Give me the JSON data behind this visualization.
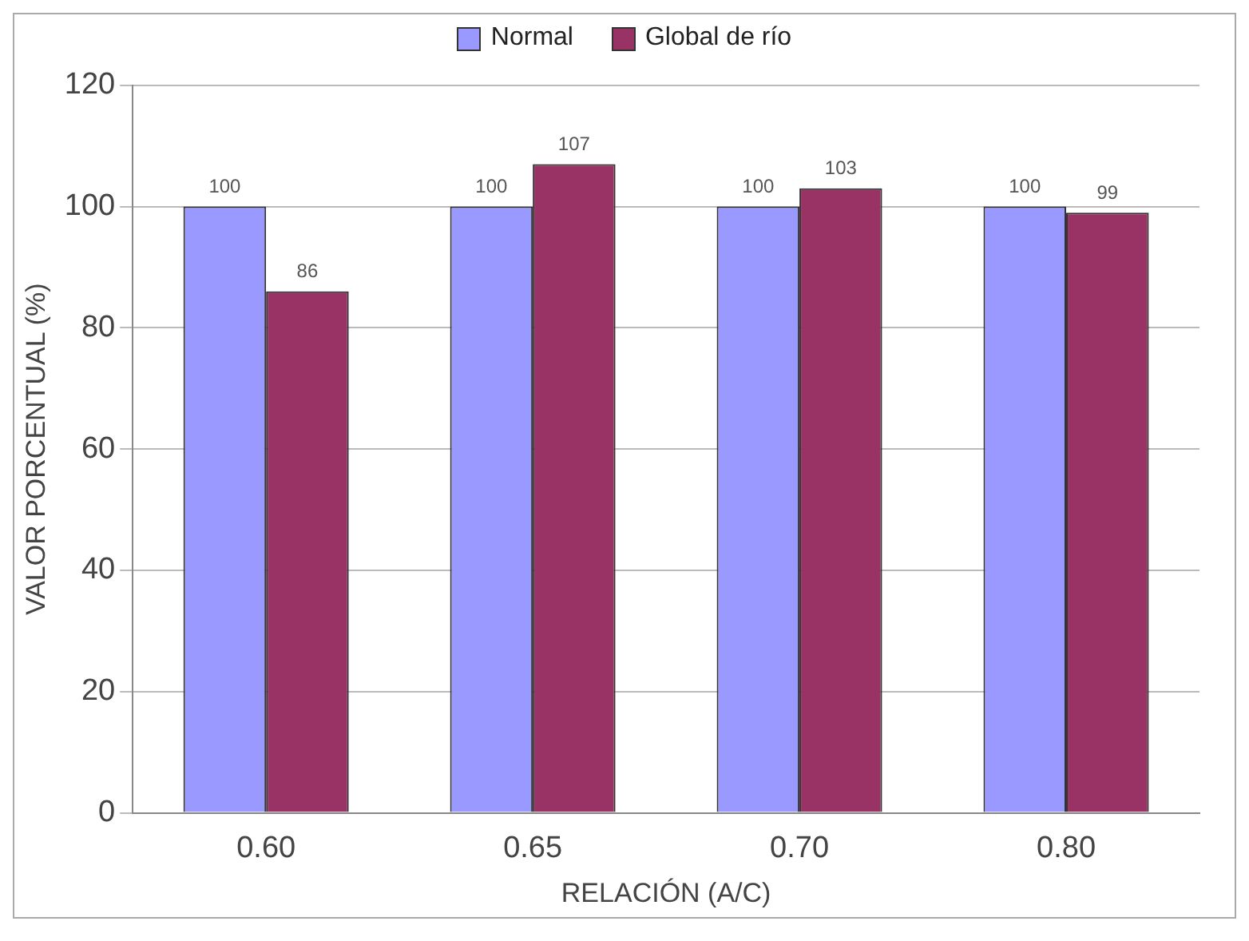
{
  "chart_data": {
    "type": "bar",
    "xlabel": "RELACIÓN (A/C)",
    "ylabel": "VALOR PORCENTUAL (%)",
    "categories": [
      "0.60",
      "0.65",
      "0.70",
      "0.80"
    ],
    "series": [
      {
        "name": "Normal",
        "color": "#9999ff",
        "values": [
          100,
          100,
          100,
          100
        ]
      },
      {
        "name": "Global de río",
        "color": "#993366",
        "values": [
          86,
          107,
          103,
          99
        ]
      }
    ],
    "ylim": [
      0,
      120
    ],
    "yticks": [
      0,
      20,
      40,
      60,
      80,
      100,
      120
    ],
    "grid": "y",
    "legend": "top",
    "data_labels": true
  }
}
